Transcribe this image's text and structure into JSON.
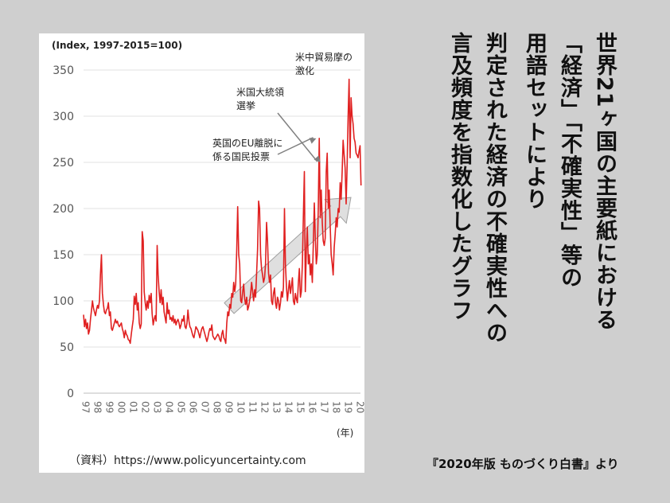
{
  "colors": {
    "series": "#e02020",
    "arrow_fill": "#d9d9d9",
    "arrow_stroke": "#a0a0a0",
    "annot_arrow": "#808080",
    "background": "#cfcfcf"
  },
  "headline": {
    "col1": "世界21ヶ国の主要紙における",
    "col2": "「経済」「不確実性」等の",
    "col3": "用語セットにより",
    "col4": "判定された経済の不確実性への",
    "col5": "言及頻度を指数化したグラフ"
  },
  "credit": "『2020年版 ものづくり白書』より",
  "source": "（資料）https://www.policyuncertainty.com",
  "chart_data": {
    "type": "line",
    "unit_label": "(Index, 1997-2015=100)",
    "x_unit": "(年)",
    "ylim": [
      0,
      350
    ],
    "y_ticks": [
      0,
      50,
      100,
      150,
      200,
      250,
      300,
      350
    ],
    "x_tick_labels": [
      "97",
      "98",
      "99",
      "00",
      "01",
      "02",
      "03",
      "04",
      "05",
      "06",
      "07",
      "08",
      "09",
      "10",
      "11",
      "12",
      "13",
      "14",
      "15",
      "16",
      "17",
      "18",
      "19",
      "20"
    ],
    "x_range": [
      1997,
      2020.2
    ],
    "annotations": [
      {
        "text": [
          "英国のEU離脱に",
          "係る国民投票"
        ],
        "target": {
          "x": 2016.5,
          "y": 276
        }
      },
      {
        "text": [
          "米国大統領",
          "選挙"
        ],
        "target": {
          "x": 2016.85,
          "y": 250
        }
      },
      {
        "text": [
          "米中貿易摩の",
          "激化"
        ],
        "target": {
          "x": 2019.6,
          "y": 340
        }
      }
    ],
    "trend_arrow": {
      "from": {
        "x": 2009.2,
        "y": 92
      },
      "to": {
        "x": 2019.4,
        "y": 212
      }
    },
    "series": [
      {
        "x_start": 1997,
        "step": 0.08333,
        "values": [
          85,
          72,
          80,
          70,
          76,
          64,
          68,
          80,
          90,
          100,
          92,
          88,
          84,
          90,
          95,
          92,
          100,
          128,
          150,
          108,
          96,
          88,
          86,
          90,
          92,
          98,
          84,
          88,
          70,
          68,
          72,
          76,
          80,
          76,
          78,
          74,
          72,
          74,
          76,
          70,
          66,
          60,
          68,
          64,
          62,
          58,
          57,
          54,
          64,
          72,
          80,
          105,
          96,
          108,
          90,
          98,
          76,
          70,
          75,
          175,
          165,
          110,
          98,
          90,
          100,
          92,
          106,
          98,
          108,
          86,
          74,
          80,
          84,
          78,
          160,
          128,
          110,
          98,
          112,
          96,
          104,
          88,
          82,
          76,
          98,
          86,
          90,
          80,
          82,
          78,
          84,
          76,
          80,
          74,
          78,
          80,
          76,
          70,
          74,
          80,
          78,
          84,
          72,
          70,
          76,
          90,
          78,
          72,
          70,
          66,
          62,
          60,
          66,
          72,
          70,
          68,
          64,
          60,
          66,
          70,
          72,
          68,
          64,
          60,
          56,
          60,
          66,
          70,
          68,
          74,
          62,
          60,
          58,
          60,
          62,
          64,
          62,
          58,
          56,
          64,
          68,
          60,
          58,
          54,
          76,
          88,
          84,
          96,
          92,
          108,
          104,
          120,
          110,
          118,
          155,
          202,
          150,
          140,
          100,
          98,
          110,
          118,
          102,
          96,
          104,
          90,
          94,
          100,
          108,
          120,
          110,
          100,
          112,
          104,
          130,
          156,
          208,
          200,
          150,
          135,
          128,
          120,
          125,
          140,
          185,
          165,
          130,
          120,
          128,
          100,
          96,
          108,
          114,
          98,
          92,
          104,
          100,
          90,
          98,
          110,
          104,
          115,
          200,
          140,
          115,
          100,
          112,
          122,
          108,
          116,
          125,
          100,
          96,
          108,
          102,
          98,
          120,
          135,
          104,
          110,
          140,
          190,
          240,
          110,
          155,
          180,
          140,
          150,
          128,
          140,
          120,
          160,
          206,
          170,
          140,
          150,
          200,
          276,
          190,
          220,
          185,
          165,
          160,
          168,
          240,
          260,
          200,
          220,
          180,
          150,
          140,
          128,
          158,
          172,
          190,
          180,
          200,
          196,
          228,
          210,
          240,
          274,
          258,
          244,
          205,
          245,
          300,
          340,
          255,
          320,
          300,
          292,
          276,
          272,
          260,
          258,
          255,
          262,
          268,
          225
        ]
      }
    ]
  }
}
